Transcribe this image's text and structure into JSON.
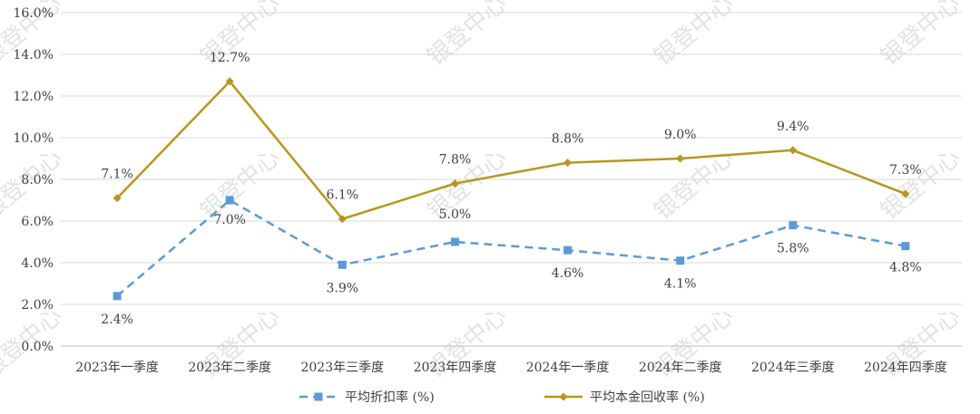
{
  "chart_data": {
    "type": "line",
    "categories": [
      "2023年一季度",
      "2023年二季度",
      "2023年三季度",
      "2023年四季度",
      "2024年一季度",
      "2024年二季度",
      "2024年三季度",
      "2024年四季度"
    ],
    "series": [
      {
        "name": "平均折扣率 (%)",
        "values": [
          2.4,
          7.0,
          3.9,
          5.0,
          4.6,
          4.1,
          5.8,
          4.8
        ],
        "labels": [
          "2.4%",
          "7.0%",
          "3.9%",
          "5.0%",
          "4.6%",
          "4.1%",
          "5.8%",
          "4.8%"
        ],
        "color": "#5b9bd5",
        "style": "dashed",
        "marker": "square"
      },
      {
        "name": "平均本金回收率 (%)",
        "values": [
          7.1,
          12.7,
          6.1,
          7.8,
          8.8,
          9.0,
          9.4,
          7.3
        ],
        "labels": [
          "7.1%",
          "12.7%",
          "6.1%",
          "7.8%",
          "8.8%",
          "9.0%",
          "9.4%",
          "7.3%"
        ],
        "color": "#b8961e",
        "style": "solid",
        "marker": "diamond"
      }
    ],
    "ylim": [
      0,
      16
    ],
    "yticks": [
      "0.0%",
      "2.0%",
      "4.0%",
      "6.0%",
      "8.0%",
      "10.0%",
      "12.0%",
      "14.0%",
      "16.0%"
    ],
    "grid": true,
    "gridline_color": "#d9d9d9",
    "legend_position": "bottom",
    "watermark": "银登中心"
  }
}
